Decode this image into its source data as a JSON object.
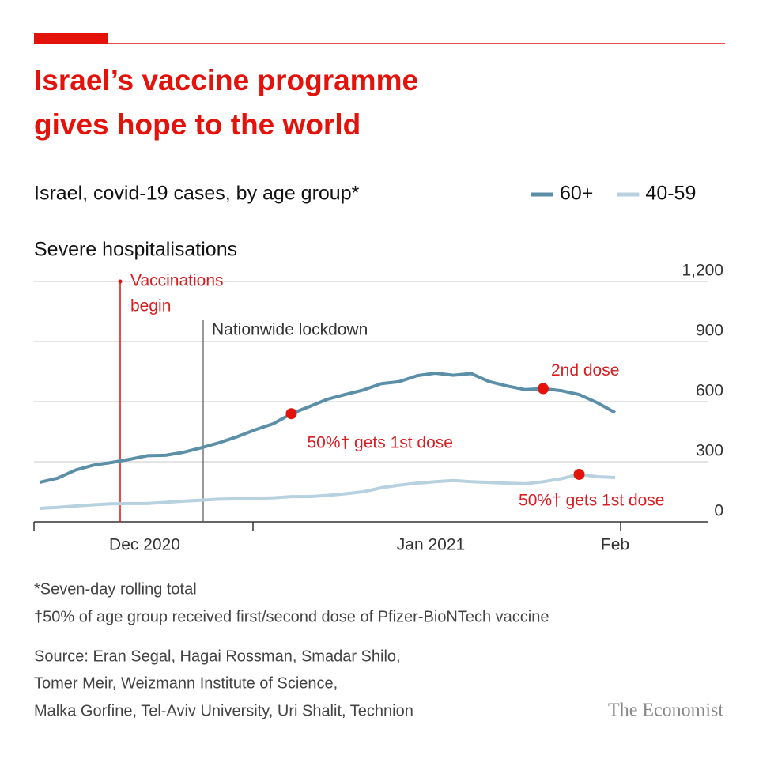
{
  "chart_data": {
    "type": "line",
    "title_lines": [
      "Israel’s vaccine programme",
      "gives hope to the world"
    ],
    "subtitle": "Israel, covid-19 cases, by age group*",
    "panel_title": "Severe hospitalisations",
    "x_labels": [
      "Dec 2020",
      "Jan 2021",
      "Feb"
    ],
    "series": [
      {
        "name": "60+",
        "color": "#5b8fa8",
        "values": [
          197,
          218,
          258,
          283,
          296,
          312,
          330,
          332,
          347,
          370,
          395,
          425,
          460,
          490,
          540,
          575,
          612,
          636,
          658,
          690,
          700,
          730,
          742,
          732,
          740,
          700,
          678,
          660,
          665,
          655,
          635,
          595,
          545
        ]
      },
      {
        "name": "40-59",
        "color": "#b7d1df",
        "values": [
          67,
          72,
          79,
          85,
          90,
          91,
          91,
          97,
          103,
          108,
          113,
          115,
          117,
          120,
          126,
          126,
          132,
          140,
          150,
          170,
          183,
          193,
          200,
          206,
          200,
          197,
          193,
          190,
          200,
          215,
          237,
          225,
          221
        ]
      }
    ],
    "ylim": [
      0,
      1200
    ],
    "yticks": [
      0,
      300,
      600,
      900,
      {
        "value": 1200,
        "label": "1,200"
      }
    ],
    "grid": true,
    "legend": "top-right",
    "annotations": {
      "vaccinations": [
        "Vaccinations",
        "begin"
      ],
      "lockdown": "Nationwide lockdown",
      "first_dose_60": "50%† gets 1st dose",
      "second_dose_60": "2nd dose",
      "first_dose_40": "50%† gets 1st dose"
    },
    "footnotes": [
      "*Seven-day rolling total",
      "†50% of age group received first/second dose of Pfizer-BioNTech vaccine"
    ],
    "source": [
      "Source: Eran Segal, Hagai Rossman, Smadar Shilo,",
      "Tomer Meir, Weizmann Institute of Science,",
      "Malka Gorfine, Tel-Aviv University, Uri Shalit, Technion"
    ],
    "brand": "The Economist"
  }
}
